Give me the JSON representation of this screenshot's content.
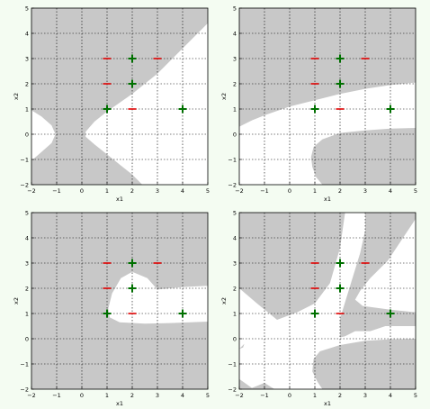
{
  "figure": {
    "background": "#f4fcf2"
  },
  "chart_data": [
    {
      "id": "top-left",
      "type": "scatter",
      "xlabel": "x1",
      "ylabel": "x2",
      "xlim": [
        -2,
        5
      ],
      "ylim": [
        -2,
        5
      ],
      "xticks": [
        -2,
        -1,
        0,
        1,
        2,
        3,
        4,
        5
      ],
      "yticks": [
        -2,
        -1,
        0,
        1,
        2,
        3,
        4,
        5
      ],
      "grid": true,
      "colors": {
        "region": "#c8c8c8",
        "positive": "#007000",
        "negative": "#e00000"
      },
      "series": [
        {
          "marker": "+",
          "x": [
            1,
            2,
            2,
            4
          ],
          "y": [
            1,
            2,
            3,
            1
          ]
        },
        {
          "marker": "-",
          "x": [
            1,
            1,
            2,
            3
          ],
          "y": [
            2,
            3,
            1,
            3
          ]
        }
      ],
      "region_boundary": [
        [
          [
            -2,
            5
          ],
          [
            5,
            5
          ],
          [
            5,
            4.4
          ],
          [
            4.5,
            3.9
          ],
          [
            4,
            3.4
          ],
          [
            3.5,
            2.9
          ],
          [
            3,
            2.4
          ],
          [
            2.5,
            2.0
          ],
          [
            2,
            1.6
          ],
          [
            1.5,
            1.25
          ],
          [
            1,
            0.9
          ],
          [
            0.5,
            0.5
          ],
          [
            0.15,
            0.1
          ],
          [
            0.15,
            -0.1
          ],
          [
            0.5,
            -0.4
          ],
          [
            1,
            -0.8
          ],
          [
            1.5,
            -1.2
          ],
          [
            2.0,
            -1.6
          ],
          [
            2.4,
            -2
          ],
          [
            -2,
            -2
          ],
          [
            -2,
            -1.05
          ],
          [
            -1.6,
            -0.7
          ],
          [
            -1.2,
            -0.35
          ],
          [
            -1.05,
            0
          ],
          [
            -1.2,
            0.35
          ],
          [
            -1.6,
            0.7
          ],
          [
            -2,
            0.95
          ]
        ]
      ]
    },
    {
      "id": "top-right",
      "type": "scatter",
      "xlabel": "x1",
      "ylabel": "x2",
      "xlim": [
        -2,
        5
      ],
      "ylim": [
        -2,
        5
      ],
      "xticks": [
        -2,
        -1,
        0,
        1,
        2,
        3,
        4,
        5
      ],
      "yticks": [
        -2,
        -1,
        0,
        1,
        2,
        3,
        4,
        5
      ],
      "grid": true,
      "colors": {
        "region": "#c8c8c8",
        "positive": "#007000",
        "negative": "#e00000"
      },
      "series": [
        {
          "marker": "+",
          "x": [
            1,
            2,
            2,
            4
          ],
          "y": [
            1,
            2,
            3,
            1
          ]
        },
        {
          "marker": "-",
          "x": [
            1,
            1,
            2,
            3
          ],
          "y": [
            2,
            3,
            1,
            3
          ]
        }
      ],
      "region_boundary": [
        [
          [
            -2,
            5
          ],
          [
            5,
            5
          ],
          [
            5,
            2.05
          ],
          [
            4,
            1.95
          ],
          [
            3,
            1.8
          ],
          [
            2,
            1.6
          ],
          [
            1,
            1.35
          ],
          [
            0,
            1.1
          ],
          [
            -1,
            0.75
          ],
          [
            -1.5,
            0.55
          ],
          [
            -2,
            0.3
          ]
        ],
        [
          [
            5,
            -2
          ],
          [
            5,
            0.25
          ],
          [
            4,
            0.22
          ],
          [
            3,
            0.15
          ],
          [
            2,
            0.05
          ],
          [
            1.3,
            -0.2
          ],
          [
            0.95,
            -0.5
          ],
          [
            0.85,
            -0.9
          ],
          [
            0.9,
            -1.3
          ],
          [
            1.05,
            -1.7
          ],
          [
            1.3,
            -2
          ]
        ]
      ]
    },
    {
      "id": "bottom-left",
      "type": "scatter",
      "xlabel": "x1",
      "ylabel": "x2",
      "xlim": [
        -2,
        5
      ],
      "ylim": [
        -2,
        5
      ],
      "xticks": [
        -2,
        -1,
        0,
        1,
        2,
        3,
        4,
        5
      ],
      "yticks": [
        -2,
        -1,
        0,
        1,
        2,
        3,
        4,
        5
      ],
      "grid": true,
      "colors": {
        "region": "#c8c8c8",
        "positive": "#007000",
        "negative": "#e00000"
      },
      "series": [
        {
          "marker": "+",
          "x": [
            1,
            2,
            2,
            4
          ],
          "y": [
            1,
            2,
            3,
            1
          ]
        },
        {
          "marker": "-",
          "x": [
            1,
            1,
            2,
            3
          ],
          "y": [
            2,
            3,
            1,
            3
          ]
        }
      ],
      "region_boundary": [
        [
          [
            -2,
            5
          ],
          [
            5,
            5
          ],
          [
            5,
            2.1
          ],
          [
            4,
            2.05
          ],
          [
            3,
            1.95
          ],
          [
            2.6,
            2.4
          ],
          [
            2,
            2.65
          ],
          [
            1.55,
            2.4
          ],
          [
            1.2,
            1.8
          ],
          [
            1.05,
            1.2
          ],
          [
            1.1,
            0.85
          ],
          [
            1.5,
            0.65
          ],
          [
            2.5,
            0.6
          ],
          [
            3.5,
            0.62
          ],
          [
            5,
            0.68
          ],
          [
            5,
            -2
          ],
          [
            -2,
            -2
          ]
        ]
      ]
    },
    {
      "id": "bottom-right",
      "type": "scatter",
      "xlabel": "x1",
      "ylabel": "x2",
      "xlim": [
        -2,
        5
      ],
      "ylim": [
        -2,
        5
      ],
      "xticks": [
        -2,
        -1,
        0,
        1,
        2,
        3,
        4,
        5
      ],
      "yticks": [
        -2,
        -1,
        0,
        1,
        2,
        3,
        4,
        5
      ],
      "grid": true,
      "colors": {
        "region": "#c8c8c8",
        "positive": "#007000",
        "negative": "#e00000"
      },
      "series": [
        {
          "marker": "+",
          "x": [
            1,
            2,
            2,
            4
          ],
          "y": [
            1,
            2,
            3,
            1
          ]
        },
        {
          "marker": "-",
          "x": [
            1,
            1,
            2,
            3
          ],
          "y": [
            2,
            3,
            1,
            3
          ]
        }
      ],
      "region_boundary": [
        [
          [
            -2,
            5
          ],
          [
            2.2,
            5
          ],
          [
            2.0,
            3.6
          ],
          [
            1.6,
            2.2
          ],
          [
            1.0,
            1.4
          ],
          [
            0.3,
            1.05
          ],
          [
            -0.5,
            0.75
          ],
          [
            -1.3,
            1.4
          ],
          [
            -2,
            2.0
          ]
        ],
        [
          [
            3.0,
            5
          ],
          [
            5,
            5
          ],
          [
            5,
            4.75
          ],
          [
            4.5,
            4.0
          ],
          [
            3.9,
            3.1
          ],
          [
            3.2,
            2.4
          ],
          [
            2.8,
            1.9
          ],
          [
            2.6,
            1.55
          ],
          [
            2.9,
            1.3
          ],
          [
            4,
            1.15
          ],
          [
            5,
            1.05
          ],
          [
            5,
            0.5
          ],
          [
            3.8,
            0.5
          ],
          [
            3.2,
            0.3
          ],
          [
            2.6,
            0.3
          ],
          [
            2.2,
            0.1
          ],
          [
            2.0,
            0.05
          ],
          [
            2.0,
            0.8
          ],
          [
            2.4,
            2.1
          ],
          [
            2.8,
            3.4
          ],
          [
            3.0,
            4.3
          ]
        ],
        [
          [
            5,
            -2
          ],
          [
            5,
            0.0
          ],
          [
            4,
            -0.02
          ],
          [
            3,
            -0.08
          ],
          [
            2,
            -0.25
          ],
          [
            1.2,
            -0.5
          ],
          [
            0.95,
            -0.8
          ],
          [
            0.9,
            -1.3
          ],
          [
            1.1,
            -1.7
          ],
          [
            1.3,
            -2
          ]
        ],
        [
          [
            -2,
            -2
          ],
          [
            -0.6,
            -2
          ],
          [
            -1.0,
            -1.75
          ],
          [
            -1.5,
            -1.95
          ],
          [
            -2,
            -1.6
          ]
        ],
        [
          [
            -2,
            -0.4
          ],
          [
            -1.8,
            -0.2
          ],
          [
            -1.85,
            -0.35
          ]
        ]
      ]
    }
  ]
}
